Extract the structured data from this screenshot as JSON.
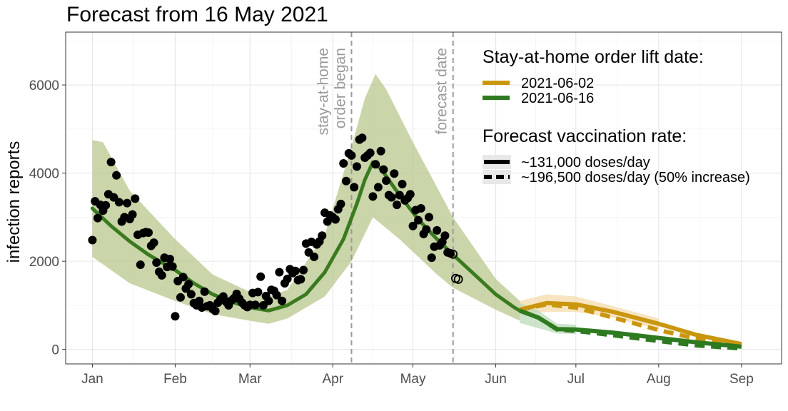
{
  "chart_data": {
    "type": "line",
    "title": "Forecast from 16 May 2021",
    "xlabel": "",
    "ylabel": "infection reports",
    "x_ticks": [
      "Jan",
      "Feb",
      "Mar",
      "Apr",
      "May",
      "Jun",
      "Jul",
      "Aug",
      "Sep"
    ],
    "x_tick_dates": [
      "2021-01-01",
      "2021-02-01",
      "2021-03-01",
      "2021-04-01",
      "2021-05-01",
      "2021-06-01",
      "2021-07-01",
      "2021-08-01",
      "2021-09-01"
    ],
    "xlim": [
      "2020-12-22",
      "2021-09-16"
    ],
    "y_ticks": [
      0,
      2000,
      4000,
      6000
    ],
    "ylim": [
      -330,
      7200
    ],
    "grid": true,
    "annotations": [
      {
        "date": "2021-04-08",
        "lines": [
          "stay-at-home",
          "order began"
        ]
      },
      {
        "date": "2021-05-16",
        "lines": [
          "forecast date"
        ]
      }
    ],
    "legend": {
      "placement": "top-right",
      "lift_title": "Stay-at-home order lift date:",
      "lift_entries": [
        {
          "label": "2021-06-02",
          "color": "#c9960e"
        },
        {
          "label": "2021-06-16",
          "color": "#2e7a20"
        }
      ],
      "rate_title": "Forecast vaccination rate:",
      "rate_entries": [
        {
          "label": "~131,000 doses/day",
          "style": "solid"
        },
        {
          "label": "~196,500 doses/day (50% increase)",
          "style": "dashed"
        }
      ]
    },
    "colors": {
      "fit_line": "#3b7a1f",
      "fit_band": "#b8c78e",
      "lift_0602": "#c9960e",
      "lift_0616": "#2e7a20",
      "band_0602": "#f3d9a6",
      "band_0616": "#b7d9b4",
      "points": "#000000",
      "vline": "#9a9a9a"
    },
    "fit_median": [
      [
        "2021-01-01",
        3200
      ],
      [
        "2021-01-08",
        2800
      ],
      [
        "2021-01-15",
        2450
      ],
      [
        "2021-01-22",
        2150
      ],
      [
        "2021-02-01",
        1800
      ],
      [
        "2021-02-08",
        1500
      ],
      [
        "2021-02-15",
        1250
      ],
      [
        "2021-02-22",
        1080
      ],
      [
        "2021-03-01",
        950
      ],
      [
        "2021-03-08",
        880
      ],
      [
        "2021-03-15",
        1000
      ],
      [
        "2021-03-22",
        1250
      ],
      [
        "2021-03-29",
        1750
      ],
      [
        "2021-04-05",
        2500
      ],
      [
        "2021-04-10",
        3300
      ],
      [
        "2021-04-13",
        3850
      ],
      [
        "2021-04-16",
        4250
      ],
      [
        "2021-04-19",
        4100
      ],
      [
        "2021-04-26",
        3500
      ],
      [
        "2021-05-03",
        2950
      ],
      [
        "2021-05-10",
        2500
      ],
      [
        "2021-05-16",
        2150
      ],
      [
        "2021-05-24",
        1700
      ],
      [
        "2021-06-01",
        1250
      ],
      [
        "2021-06-08",
        950
      ],
      [
        "2021-06-10",
        880
      ]
    ],
    "fit_band": {
      "lower": [
        [
          "2021-01-01",
          2100
        ],
        [
          "2021-01-15",
          1500
        ],
        [
          "2021-02-01",
          1100
        ],
        [
          "2021-02-15",
          800
        ],
        [
          "2021-03-01",
          650
        ],
        [
          "2021-03-08",
          580
        ],
        [
          "2021-03-15",
          700
        ],
        [
          "2021-03-29",
          1200
        ],
        [
          "2021-04-08",
          2000
        ],
        [
          "2021-04-16",
          3000
        ],
        [
          "2021-04-26",
          2500
        ],
        [
          "2021-05-10",
          1700
        ],
        [
          "2021-05-16",
          1400
        ],
        [
          "2021-06-01",
          900
        ],
        [
          "2021-06-10",
          650
        ]
      ],
      "upper": [
        [
          "2021-01-01",
          4750
        ],
        [
          "2021-01-05",
          4700
        ],
        [
          "2021-01-15",
          3600
        ],
        [
          "2021-02-01",
          2500
        ],
        [
          "2021-02-15",
          1700
        ],
        [
          "2021-03-01",
          1300
        ],
        [
          "2021-03-08",
          1200
        ],
        [
          "2021-03-15",
          1350
        ],
        [
          "2021-03-29",
          2600
        ],
        [
          "2021-04-08",
          4600
        ],
        [
          "2021-04-13",
          5700
        ],
        [
          "2021-04-17",
          6250
        ],
        [
          "2021-04-21",
          5900
        ],
        [
          "2021-05-01",
          4700
        ],
        [
          "2021-05-16",
          3000
        ],
        [
          "2021-06-01",
          1600
        ],
        [
          "2021-06-10",
          1100
        ]
      ]
    },
    "series": [
      {
        "name": "2021-06-02",
        "vaccination": "~131,000 doses/day",
        "points": [
          [
            "2021-06-10",
            900
          ],
          [
            "2021-06-20",
            1050
          ],
          [
            "2021-07-01",
            1020
          ],
          [
            "2021-07-15",
            850
          ],
          [
            "2021-08-01",
            580
          ],
          [
            "2021-08-15",
            330
          ],
          [
            "2021-09-01",
            120
          ]
        ],
        "band_lower": [
          [
            "2021-06-10",
            780
          ],
          [
            "2021-06-20",
            850
          ],
          [
            "2021-07-01",
            850
          ],
          [
            "2021-07-15",
            720
          ],
          [
            "2021-08-01",
            450
          ]
        ],
        "band_upper": [
          [
            "2021-06-10",
            1100
          ],
          [
            "2021-06-20",
            1250
          ],
          [
            "2021-07-01",
            1200
          ],
          [
            "2021-07-15",
            980
          ],
          [
            "2021-08-01",
            700
          ]
        ]
      },
      {
        "name": "2021-06-02",
        "vaccination": "~196,500 doses/day (50% increase)",
        "points": [
          [
            "2021-06-10",
            900
          ],
          [
            "2021-06-20",
            1020
          ],
          [
            "2021-07-01",
            950
          ],
          [
            "2021-07-15",
            720
          ],
          [
            "2021-08-01",
            440
          ],
          [
            "2021-08-15",
            240
          ],
          [
            "2021-09-01",
            70
          ]
        ]
      },
      {
        "name": "2021-06-16",
        "vaccination": "~131,000 doses/day",
        "points": [
          [
            "2021-06-10",
            880
          ],
          [
            "2021-06-17",
            720
          ],
          [
            "2021-06-24",
            460
          ],
          [
            "2021-07-01",
            450
          ],
          [
            "2021-07-15",
            380
          ],
          [
            "2021-08-01",
            260
          ],
          [
            "2021-08-15",
            160
          ],
          [
            "2021-09-01",
            60
          ]
        ],
        "band_lower": [
          [
            "2021-06-10",
            600
          ],
          [
            "2021-06-17",
            480
          ],
          [
            "2021-06-24",
            360
          ],
          [
            "2021-07-01",
            350
          ]
        ],
        "band_upper": [
          [
            "2021-06-10",
            1050
          ],
          [
            "2021-06-17",
            880
          ],
          [
            "2021-06-24",
            580
          ],
          [
            "2021-07-01",
            560
          ]
        ]
      },
      {
        "name": "2021-06-16",
        "vaccination": "~196,500 doses/day (50% increase)",
        "points": [
          [
            "2021-06-10",
            880
          ],
          [
            "2021-06-17",
            720
          ],
          [
            "2021-06-24",
            450
          ],
          [
            "2021-07-01",
            420
          ],
          [
            "2021-07-15",
            320
          ],
          [
            "2021-08-01",
            190
          ],
          [
            "2021-08-15",
            90
          ],
          [
            "2021-09-01",
            20
          ]
        ]
      }
    ],
    "observed": [
      [
        "2021-01-01",
        2480
      ],
      [
        "2021-01-02",
        3360
      ],
      [
        "2021-01-03",
        2980
      ],
      [
        "2021-01-04",
        3280
      ],
      [
        "2021-01-05",
        3150
      ],
      [
        "2021-01-06",
        3270
      ],
      [
        "2021-01-07",
        3520
      ],
      [
        "2021-01-08",
        4250
      ],
      [
        "2021-01-09",
        3450
      ],
      [
        "2021-01-10",
        3950
      ],
      [
        "2021-01-11",
        3340
      ],
      [
        "2021-01-12",
        2900
      ],
      [
        "2021-01-13",
        3000
      ],
      [
        "2021-01-14",
        3320
      ],
      [
        "2021-01-15",
        2960
      ],
      [
        "2021-01-16",
        3060
      ],
      [
        "2021-01-17",
        3420
      ],
      [
        "2021-01-18",
        2600
      ],
      [
        "2021-01-19",
        1920
      ],
      [
        "2021-01-20",
        2640
      ],
      [
        "2021-01-21",
        2660
      ],
      [
        "2021-01-22",
        2650
      ],
      [
        "2021-01-23",
        2350
      ],
      [
        "2021-01-24",
        2420
      ],
      [
        "2021-01-25",
        1970
      ],
      [
        "2021-01-26",
        1760
      ],
      [
        "2021-01-27",
        1680
      ],
      [
        "2021-01-28",
        2080
      ],
      [
        "2021-01-29",
        1870
      ],
      [
        "2021-01-30",
        2050
      ],
      [
        "2021-01-31",
        1880
      ],
      [
        "2021-02-01",
        750
      ],
      [
        "2021-02-02",
        1550
      ],
      [
        "2021-02-03",
        1180
      ],
      [
        "2021-02-04",
        1640
      ],
      [
        "2021-02-05",
        1380
      ],
      [
        "2021-02-06",
        1480
      ],
      [
        "2021-02-07",
        1250
      ],
      [
        "2021-02-08",
        1050
      ],
      [
        "2021-02-09",
        1000
      ],
      [
        "2021-02-10",
        1100
      ],
      [
        "2021-02-11",
        950
      ],
      [
        "2021-02-12",
        1310
      ],
      [
        "2021-02-13",
        980
      ],
      [
        "2021-02-14",
        1000
      ],
      [
        "2021-02-15",
        920
      ],
      [
        "2021-02-16",
        870
      ],
      [
        "2021-02-17",
        1060
      ],
      [
        "2021-02-18",
        1140
      ],
      [
        "2021-02-19",
        1200
      ],
      [
        "2021-02-20",
        1080
      ],
      [
        "2021-02-21",
        1000
      ],
      [
        "2021-02-22",
        1110
      ],
      [
        "2021-02-23",
        1160
      ],
      [
        "2021-02-24",
        1260
      ],
      [
        "2021-02-25",
        1150
      ],
      [
        "2021-02-26",
        1060
      ],
      [
        "2021-02-27",
        1000
      ],
      [
        "2021-02-28",
        960
      ],
      [
        "2021-03-01",
        1010
      ],
      [
        "2021-03-02",
        1280
      ],
      [
        "2021-03-03",
        1010
      ],
      [
        "2021-03-04",
        1300
      ],
      [
        "2021-03-05",
        1650
      ],
      [
        "2021-03-06",
        1000
      ],
      [
        "2021-03-07",
        1210
      ],
      [
        "2021-03-08",
        1100
      ],
      [
        "2021-03-09",
        1350
      ],
      [
        "2021-03-10",
        1330
      ],
      [
        "2021-03-11",
        1230
      ],
      [
        "2021-03-12",
        1750
      ],
      [
        "2021-03-13",
        1100
      ],
      [
        "2021-03-14",
        1500
      ],
      [
        "2021-03-15",
        1600
      ],
      [
        "2021-03-16",
        1820
      ],
      [
        "2021-03-17",
        1730
      ],
      [
        "2021-03-18",
        1780
      ],
      [
        "2021-03-19",
        1570
      ],
      [
        "2021-03-20",
        1590
      ],
      [
        "2021-03-21",
        1800
      ],
      [
        "2021-03-22",
        2400
      ],
      [
        "2021-03-23",
        2200
      ],
      [
        "2021-03-24",
        2440
      ],
      [
        "2021-03-25",
        2100
      ],
      [
        "2021-03-26",
        2380
      ],
      [
        "2021-03-27",
        2450
      ],
      [
        "2021-03-28",
        2580
      ],
      [
        "2021-03-29",
        3100
      ],
      [
        "2021-03-30",
        2900
      ],
      [
        "2021-03-31",
        3040
      ],
      [
        "2021-04-01",
        3000
      ],
      [
        "2021-04-02",
        2950
      ],
      [
        "2021-04-03",
        3180
      ],
      [
        "2021-04-04",
        3300
      ],
      [
        "2021-04-05",
        4220
      ],
      [
        "2021-04-06",
        3820
      ],
      [
        "2021-04-07",
        4450
      ],
      [
        "2021-04-08",
        4400
      ],
      [
        "2021-04-09",
        3680
      ],
      [
        "2021-04-10",
        4150
      ],
      [
        "2021-04-11",
        4760
      ],
      [
        "2021-04-12",
        4800
      ],
      [
        "2021-04-13",
        4350
      ],
      [
        "2021-04-14",
        4400
      ],
      [
        "2021-04-15",
        4460
      ],
      [
        "2021-04-16",
        3470
      ],
      [
        "2021-04-17",
        4200
      ],
      [
        "2021-04-18",
        3680
      ],
      [
        "2021-04-19",
        4500
      ],
      [
        "2021-04-20",
        4080
      ],
      [
        "2021-04-21",
        3830
      ],
      [
        "2021-04-22",
        3500
      ],
      [
        "2021-04-23",
        3450
      ],
      [
        "2021-04-24",
        3990
      ],
      [
        "2021-04-25",
        3280
      ],
      [
        "2021-04-26",
        3500
      ],
      [
        "2021-04-27",
        3750
      ],
      [
        "2021-04-28",
        3380
      ],
      [
        "2021-04-29",
        3430
      ],
      [
        "2021-04-30",
        3520
      ],
      [
        "2021-05-01",
        2800
      ],
      [
        "2021-05-02",
        3160
      ],
      [
        "2021-05-03",
        2930
      ],
      [
        "2021-05-04",
        3200
      ],
      [
        "2021-05-05",
        2620
      ],
      [
        "2021-05-06",
        2720
      ],
      [
        "2021-05-07",
        3000
      ],
      [
        "2021-05-08",
        2080
      ],
      [
        "2021-05-09",
        2330
      ],
      [
        "2021-05-10",
        2700
      ],
      [
        "2021-05-11",
        2360
      ],
      [
        "2021-05-12",
        2440
      ],
      [
        "2021-05-13",
        2580
      ],
      [
        "2021-05-14",
        2200
      ],
      [
        "2021-05-15",
        2180
      ]
    ],
    "observed_open": [
      [
        "2021-05-16",
        2160
      ],
      [
        "2021-05-17",
        1610
      ],
      [
        "2021-05-18",
        1590
      ]
    ]
  }
}
